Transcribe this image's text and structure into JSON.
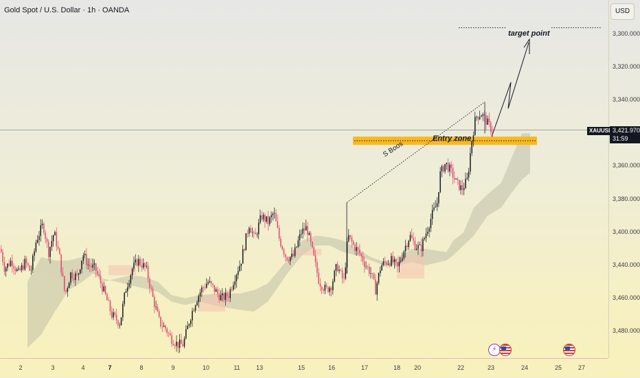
{
  "header": {
    "title": "Gold Spot / U.S. Dollar · 1h · OANDA"
  },
  "price_axis": {
    "currency": "USD",
    "ticks": [
      "3,480.000",
      "3,460.000",
      "3,440.000",
      "3,400.000",
      "3,380.000",
      "3,360.000",
      "3,340.000",
      "3,320.000",
      "3,300.000"
    ]
  },
  "current": {
    "symbol": "XAUUSD",
    "price": "3,421.970",
    "countdown": "31:59"
  },
  "time_axis": {
    "labels": [
      "2",
      "3",
      "4",
      "7",
      "8",
      "9",
      "10",
      "11",
      "13",
      "15",
      "16",
      "17",
      "18",
      "20",
      "22",
      "23",
      "24",
      "25",
      "27"
    ],
    "bold": [
      "7"
    ]
  },
  "annotations": {
    "entry_zone": "Entry zone",
    "target": "target point",
    "bos": "S Boos"
  },
  "colors": {
    "bull": "#131722",
    "bear": "#e5426b",
    "entry": "#f8b820",
    "cloud": "#b6b6a0",
    "cloud_bear": "#f4c2b0",
    "price_line": "#131722"
  },
  "chart_data": {
    "type": "candlestick",
    "title": "Gold Spot / U.S. Dollar · 1h · OANDA",
    "ylim": [
      3283,
      3496
    ],
    "y_ticks": [
      3300,
      3320,
      3340,
      3360,
      3380,
      3400,
      3440,
      3460,
      3480
    ],
    "last_price": 3421.97,
    "path_points": [
      [
        0,
        3350
      ],
      [
        6,
        3338
      ],
      [
        16,
        3343
      ],
      [
        26,
        3335
      ],
      [
        36,
        3342
      ],
      [
        44,
        3336
      ],
      [
        52,
        3355
      ],
      [
        62,
        3365
      ],
      [
        70,
        3348
      ],
      [
        78,
        3360
      ],
      [
        86,
        3345
      ],
      [
        94,
        3322
      ],
      [
        102,
        3335
      ],
      [
        112,
        3333
      ],
      [
        120,
        3347
      ],
      [
        128,
        3340
      ],
      [
        138,
        3338
      ],
      [
        150,
        3325
      ],
      [
        162,
        3310
      ],
      [
        174,
        3305
      ],
      [
        182,
        3325
      ],
      [
        192,
        3338
      ],
      [
        200,
        3343
      ],
      [
        212,
        3338
      ],
      [
        222,
        3320
      ],
      [
        232,
        3305
      ],
      [
        240,
        3302
      ],
      [
        248,
        3296
      ],
      [
        258,
        3292
      ],
      [
        266,
        3292
      ],
      [
        276,
        3308
      ],
      [
        284,
        3318
      ],
      [
        292,
        3325
      ],
      [
        302,
        3330
      ],
      [
        312,
        3325
      ],
      [
        322,
        3320
      ],
      [
        332,
        3322
      ],
      [
        342,
        3334
      ],
      [
        350,
        3342
      ],
      [
        362,
        3365
      ],
      [
        370,
        3356
      ],
      [
        380,
        3370
      ],
      [
        390,
        3366
      ],
      [
        398,
        3372
      ],
      [
        406,
        3356
      ],
      [
        416,
        3345
      ],
      [
        426,
        3345
      ],
      [
        438,
        3360
      ],
      [
        446,
        3363
      ],
      [
        456,
        3345
      ],
      [
        464,
        3330
      ],
      [
        474,
        3325
      ],
      [
        482,
        3328
      ],
      [
        490,
        3340
      ],
      [
        500,
        3330
      ],
      [
        506,
        3358
      ],
      [
        514,
        3352
      ],
      [
        522,
        3348
      ],
      [
        532,
        3340
      ],
      [
        540,
        3335
      ],
      [
        546,
        3325
      ],
      [
        554,
        3340
      ],
      [
        562,
        3342
      ],
      [
        570,
        3343
      ],
      [
        578,
        3338
      ],
      [
        588,
        3350
      ],
      [
        596,
        3358
      ],
      [
        604,
        3352
      ],
      [
        612,
        3350
      ],
      [
        620,
        3360
      ],
      [
        628,
        3370
      ],
      [
        636,
        3378
      ],
      [
        640,
        3395
      ],
      [
        648,
        3402
      ],
      [
        656,
        3397
      ],
      [
        664,
        3390
      ],
      [
        672,
        3386
      ],
      [
        680,
        3392
      ],
      [
        686,
        3415
      ],
      [
        692,
        3430
      ],
      [
        700,
        3432
      ],
      [
        708,
        3427
      ],
      [
        714,
        3423
      ],
      [
        718,
        3421
      ]
    ],
    "cloud_upper": [
      [
        40,
        3330
      ],
      [
        60,
        3345
      ],
      [
        80,
        3343
      ],
      [
        100,
        3343
      ],
      [
        120,
        3345
      ],
      [
        135,
        3344
      ],
      [
        150,
        3330
      ],
      [
        170,
        3332
      ],
      [
        190,
        3334
      ],
      [
        210,
        3333
      ],
      [
        230,
        3330
      ],
      [
        250,
        3322
      ],
      [
        270,
        3320
      ],
      [
        290,
        3322
      ],
      [
        320,
        3323
      ],
      [
        350,
        3323
      ],
      [
        370,
        3325
      ],
      [
        390,
        3329
      ],
      [
        420,
        3344
      ],
      [
        440,
        3355
      ],
      [
        460,
        3358
      ],
      [
        480,
        3357
      ],
      [
        500,
        3355
      ],
      [
        520,
        3350
      ],
      [
        540,
        3345
      ],
      [
        560,
        3342
      ],
      [
        580,
        3345
      ],
      [
        600,
        3350
      ],
      [
        620,
        3350
      ],
      [
        650,
        3348
      ],
      [
        660,
        3355
      ],
      [
        675,
        3360
      ],
      [
        690,
        3375
      ],
      [
        710,
        3383
      ],
      [
        730,
        3390
      ],
      [
        745,
        3405
      ],
      [
        760,
        3420
      ],
      [
        772,
        3420
      ]
    ],
    "cloud_lower": [
      [
        40,
        3290
      ],
      [
        60,
        3298
      ],
      [
        80,
        3312
      ],
      [
        100,
        3325
      ],
      [
        120,
        3330
      ],
      [
        135,
        3335
      ],
      [
        150,
        3332
      ],
      [
        170,
        3330
      ],
      [
        190,
        3328
      ],
      [
        210,
        3326
      ],
      [
        230,
        3324
      ],
      [
        250,
        3318
      ],
      [
        270,
        3316
      ],
      [
        290,
        3318
      ],
      [
        320,
        3315
      ],
      [
        350,
        3313
      ],
      [
        370,
        3312
      ],
      [
        390,
        3318
      ],
      [
        420,
        3336
      ],
      [
        440,
        3346
      ],
      [
        460,
        3352
      ],
      [
        480,
        3352
      ],
      [
        500,
        3348
      ],
      [
        520,
        3346
      ],
      [
        540,
        3343
      ],
      [
        560,
        3340
      ],
      [
        580,
        3340
      ],
      [
        600,
        3342
      ],
      [
        620,
        3340
      ],
      [
        650,
        3343
      ],
      [
        660,
        3346
      ],
      [
        675,
        3352
      ],
      [
        690,
        3358
      ],
      [
        710,
        3370
      ],
      [
        730,
        3375
      ],
      [
        745,
        3384
      ],
      [
        760,
        3392
      ],
      [
        772,
        3396
      ]
    ],
    "entry_zone": [
      3413,
      3418
    ],
    "target_level": 3484
  }
}
